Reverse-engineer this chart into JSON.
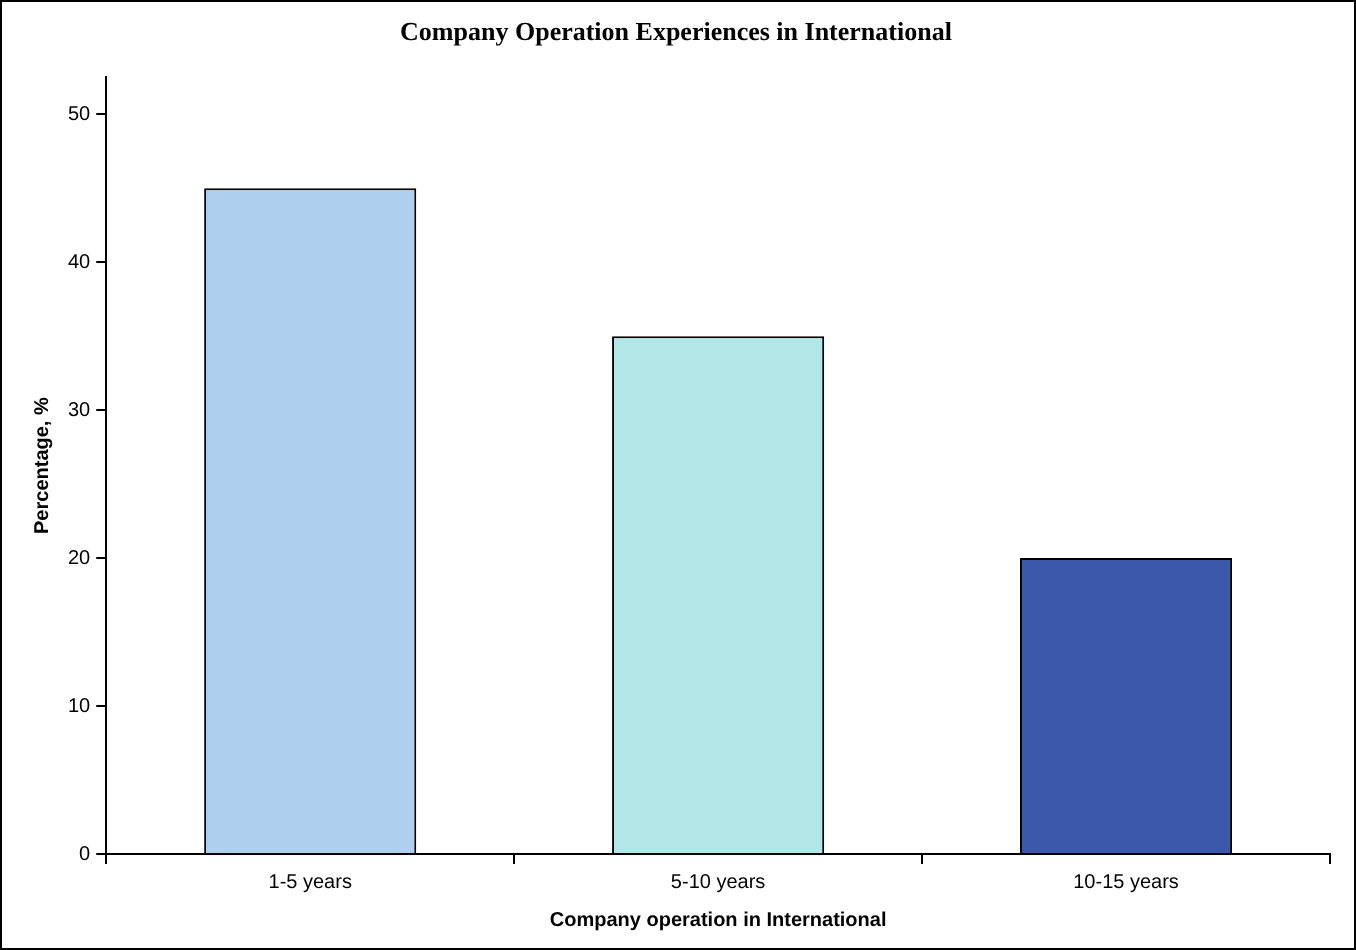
{
  "chart_data": {
    "type": "bar",
    "title": "Company Operation Experiences in International",
    "xlabel": "Company operation in International",
    "ylabel": "Percentage, %",
    "categories": [
      "1-5 years",
      "5-10 years",
      "10-15 years"
    ],
    "values": [
      45,
      35,
      20
    ],
    "colors": [
      "#aecfee",
      "#b3e6e6",
      "#3c58ab"
    ],
    "ylim": [
      0,
      52.5
    ],
    "yticks": [
      0,
      10,
      20,
      30,
      40,
      50
    ],
    "grid": false
  }
}
